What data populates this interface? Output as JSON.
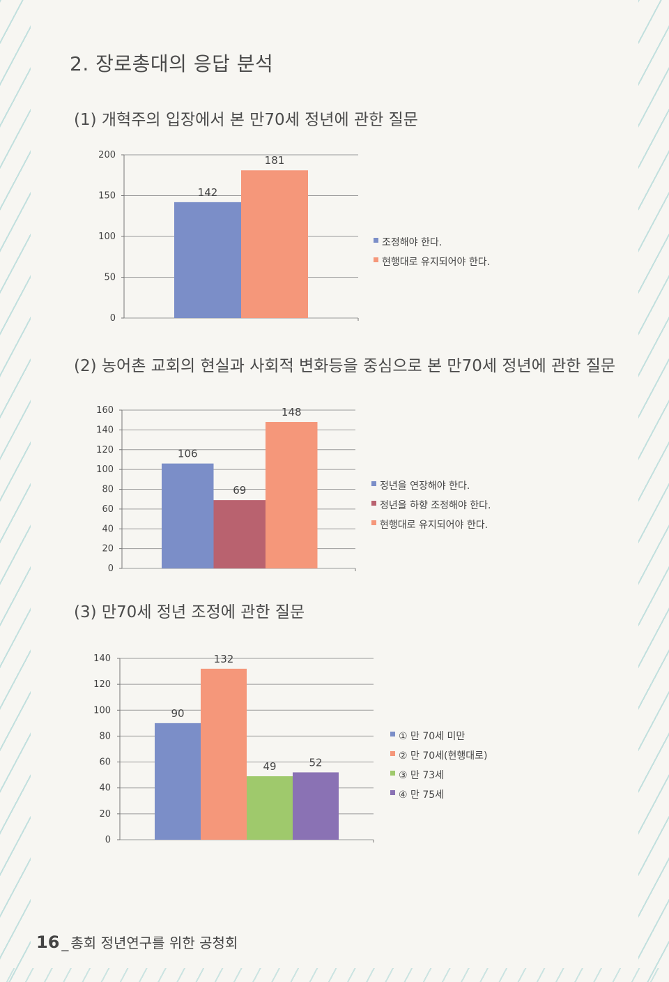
{
  "page": {
    "heading": "2. 장로총대의 응답 분석",
    "footer_page": "16",
    "footer_sep": "_",
    "footer_text": "총회 정년연구를 위한 공청회"
  },
  "chart_data": [
    {
      "type": "bar",
      "title": "(1) 개혁주의 입장에서 본 만70세 정년에 관한 질문",
      "categories": [
        "조정해야 한다.",
        "현행대로 유지되어야 한다."
      ],
      "values": [
        142,
        181
      ],
      "colors": [
        "#7b8ec8",
        "#f5977a"
      ],
      "ylim": [
        0,
        200
      ],
      "yticks": [
        0,
        50,
        100,
        150,
        200
      ],
      "legend": "right",
      "grid": true
    },
    {
      "type": "bar",
      "title": "(2) 농어촌 교회의 현실과 사회적 변화등을 중심으로 본 만70세 정년에 관한 질문",
      "categories": [
        "정년을 연장해야 한다.",
        "정년을 하향 조정해야 한다.",
        "현행대로 유지되어야 한다."
      ],
      "values": [
        106,
        69,
        148
      ],
      "colors": [
        "#7b8ec8",
        "#b9626f",
        "#f5977a"
      ],
      "ylim": [
        0,
        160
      ],
      "yticks": [
        0,
        20,
        40,
        60,
        80,
        100,
        120,
        140,
        160
      ],
      "legend": "right",
      "grid": true
    },
    {
      "type": "bar",
      "title": "(3) 만70세 정년 조정에 관한 질문",
      "categories": [
        "① 만 70세 미만",
        "② 만 70세(현행대로)",
        "③ 만 73세",
        "④ 만 75세"
      ],
      "values": [
        90,
        132,
        49,
        52
      ],
      "colors": [
        "#7b8ec8",
        "#f5977a",
        "#9fc96c",
        "#8a72b4"
      ],
      "ylim": [
        0,
        140
      ],
      "yticks": [
        0,
        20,
        40,
        60,
        80,
        100,
        120,
        140
      ],
      "legend": "right",
      "grid": true
    }
  ]
}
